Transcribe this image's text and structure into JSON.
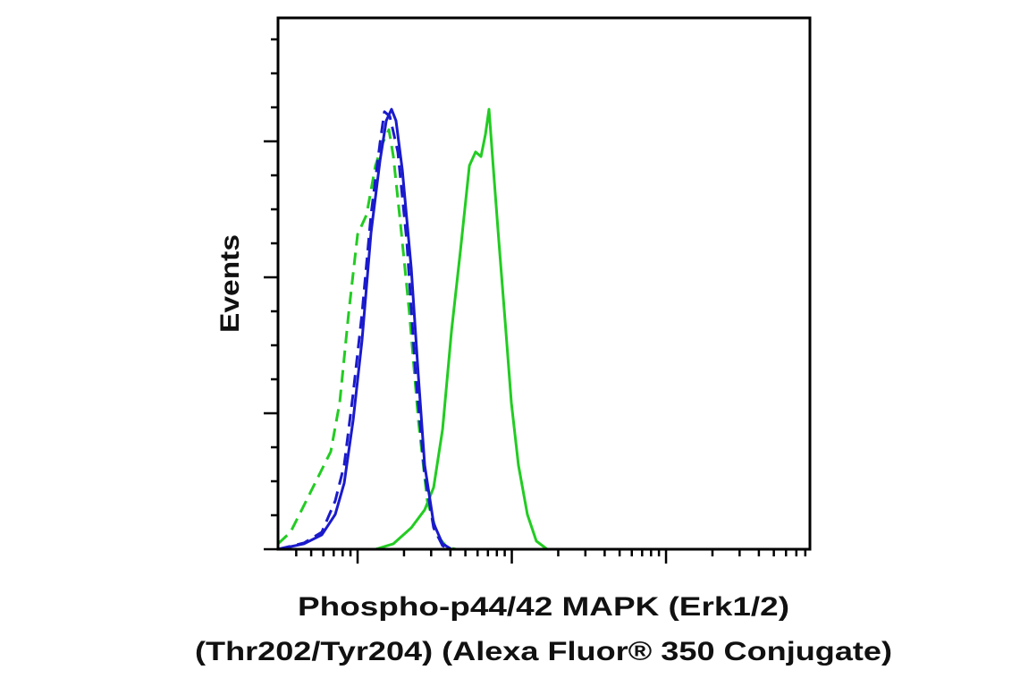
{
  "chart_data": {
    "type": "line",
    "ylabel": "Events",
    "xlabel": [
      "Phospho-p44/42 MAPK (Erk1/2)",
      "(Thr202/Tyr204) (Alexa Fluor® 350 Conjugate)"
    ],
    "xlim": [
      0.484,
      3.933
    ],
    "xticks": [
      1,
      2,
      3
    ],
    "xminorticks": [
      0.602,
      0.699,
      0.778,
      0.845,
      0.903,
      0.954,
      1.301,
      1.477,
      1.602,
      1.699,
      1.778,
      1.845,
      1.903,
      1.954,
      2.301,
      2.477,
      2.602,
      2.699,
      2.778,
      2.845,
      2.903,
      2.954,
      3.301,
      3.477,
      3.602,
      3.699,
      3.778,
      3.845,
      3.903
    ],
    "ylim": [
      0,
      195.4
    ],
    "yticks": [
      0,
      50,
      100,
      150
    ],
    "yminorticks": [
      12.5,
      25,
      37.5,
      62.5,
      75,
      87.5,
      112.5,
      125,
      137.5,
      162.5,
      175,
      187.5
    ],
    "series": [
      {
        "color": "#22cc22",
        "linestyle": "dashed",
        "x": [
          0.484,
          0.565,
          0.652,
          0.739,
          0.826,
          0.884,
          0.942,
          1,
          1.058,
          1.116,
          1.162,
          1.203,
          1.232,
          1.278,
          1.336,
          1.394,
          1.452,
          1.522,
          1.58,
          1.638,
          3.933
        ],
        "values": [
          2.0,
          6.3,
          16.1,
          26.0,
          35.9,
          53.9,
          86.8,
          115.8,
          123.0,
          141.1,
          149.3,
          154.3,
          144.4,
          119.7,
          86.8,
          47.4,
          17.8,
          4.6,
          0.7,
          0,
          0
        ]
      },
      {
        "color": "#22cc22",
        "linestyle": "solid",
        "x": [
          0.484,
          1.116,
          1.232,
          1.348,
          1.435,
          1.493,
          1.551,
          1.609,
          1.667,
          1.725,
          1.765,
          1.8,
          1.829,
          1.852,
          1.881,
          1.916,
          1.957,
          1.997,
          2.043,
          2.101,
          2.159,
          2.229,
          3.933
        ],
        "values": [
          0,
          0,
          2.0,
          7.9,
          14.5,
          22.7,
          44.1,
          80.3,
          109.9,
          141.1,
          146.1,
          144.4,
          152.6,
          161.8,
          139.5,
          113.2,
          83.6,
          53.9,
          30.9,
          12.8,
          3.0,
          0,
          0
        ]
      },
      {
        "color": "#1a1acc",
        "linestyle": "dashed",
        "x": [
          0.484,
          0.652,
          0.768,
          0.855,
          0.913,
          0.971,
          1.029,
          1.087,
          1.145,
          1.174,
          1.209,
          1.261,
          1.319,
          1.377,
          1.435,
          1.493,
          1.551,
          1.609,
          3.933
        ],
        "values": [
          0,
          2.3,
          6.3,
          17.8,
          30.9,
          57.2,
          86.8,
          123.0,
          149.3,
          160.9,
          159.2,
          146.1,
          113.2,
          63.8,
          27.6,
          7.9,
          1.3,
          0,
          0
        ]
      },
      {
        "color": "#1a1acc",
        "linestyle": "solid",
        "x": [
          0.484,
          0.652,
          0.768,
          0.855,
          0.913,
          0.971,
          1.029,
          1.087,
          1.145,
          1.186,
          1.22,
          1.249,
          1.29,
          1.348,
          1.394,
          1.435,
          1.493,
          1.551,
          1.609,
          3.933
        ],
        "values": [
          0,
          2.0,
          5.3,
          12.8,
          24.3,
          47.4,
          77.0,
          116.4,
          142.8,
          157.6,
          161.8,
          157.6,
          139.5,
          103.3,
          63.8,
          30.9,
          9.5,
          2.0,
          0,
          0
        ]
      }
    ]
  }
}
